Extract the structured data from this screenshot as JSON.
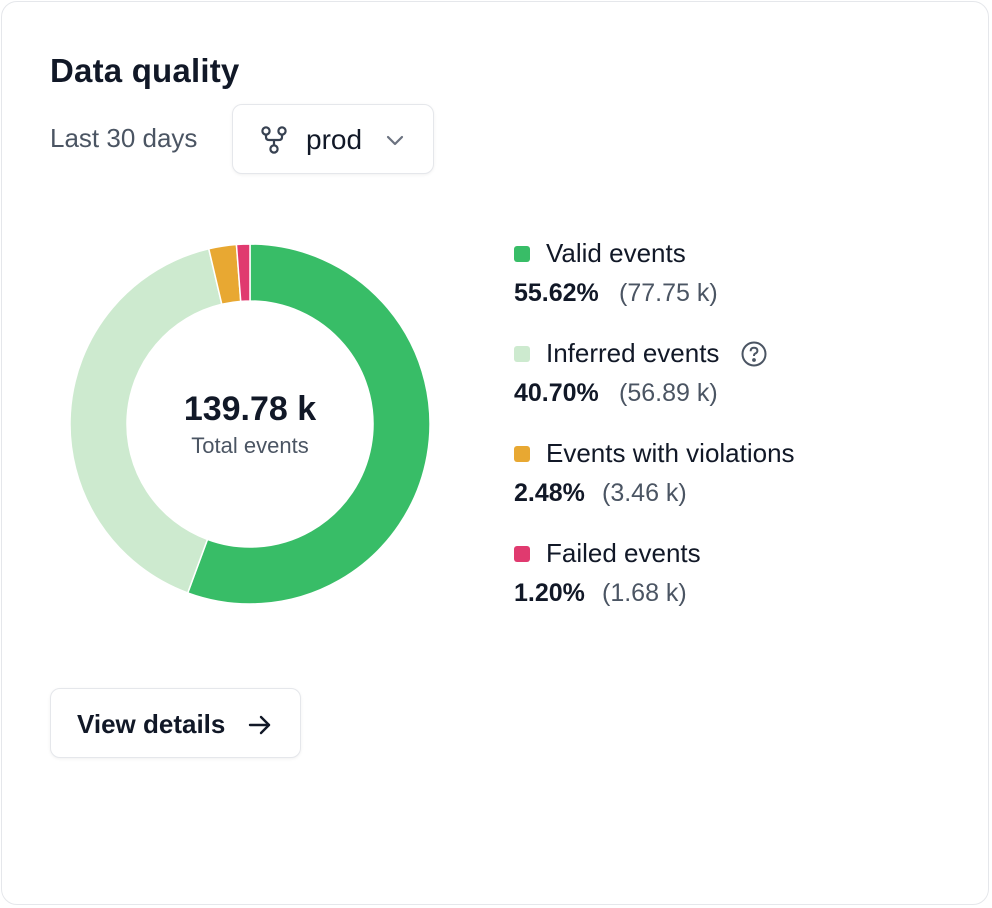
{
  "card": {
    "title": "Data quality",
    "range_label": "Last 30 days",
    "environment": {
      "selected": "prod",
      "icon": "branch-icon",
      "dropdown_icon": "chevron-down-icon"
    },
    "view_details": {
      "label": "View details",
      "icon": "arrow-right-icon"
    }
  },
  "summary": {
    "total": "139.78 k",
    "total_label": "Total events"
  },
  "legend": [
    {
      "name": "Valid events",
      "pct": "55.62%",
      "count": "(77.75 k)",
      "color": "#38bd67"
    },
    {
      "name": "Inferred events",
      "pct": "40.70%",
      "count": "(56.89 k)",
      "color": "#cdeacf",
      "help_icon": "help-circle-icon"
    },
    {
      "name": "Events with violations",
      "pct": "2.48%",
      "count": "(3.46 k)",
      "color": "#e8a832"
    },
    {
      "name": "Failed events",
      "pct": "1.20%",
      "count": "(1.68 k)",
      "color": "#e03a6f"
    }
  ],
  "chart_data": {
    "type": "pie",
    "categories": [
      "Valid events",
      "Inferred events",
      "Events with violations",
      "Failed events"
    ],
    "values": [
      55.62,
      40.7,
      2.48,
      1.2
    ],
    "counts_k": [
      77.75,
      56.89,
      3.46,
      1.68
    ],
    "colors": [
      "#38bd67",
      "#cdeacf",
      "#e8a832",
      "#e03a6f"
    ],
    "donut": true,
    "center_text": "139.78 k",
    "center_subtext": "Total events"
  }
}
